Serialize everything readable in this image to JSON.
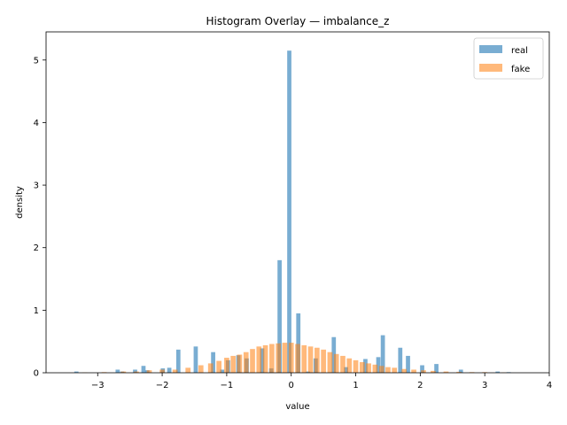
{
  "chart_data": {
    "type": "bar",
    "title": "Histogram Overlay — imbalance_z",
    "xlabel": "value",
    "ylabel": "density",
    "xlim": [
      -3.8,
      4.0
    ],
    "ylim": [
      0,
      5.45
    ],
    "x_ticks": [
      -3,
      -2,
      -1,
      0,
      1,
      2,
      3,
      4
    ],
    "y_ticks": [
      0,
      1,
      2,
      3,
      4,
      5
    ],
    "grid": false,
    "legend_position": "top-right",
    "series": [
      {
        "name": "real",
        "color": "#1f77b4",
        "opacity": 0.6,
        "bin_width": 0.065,
        "bins": [
          [
            -3.33,
            0.02
          ],
          [
            -2.69,
            0.05
          ],
          [
            -2.62,
            0.02
          ],
          [
            -2.42,
            0.05
          ],
          [
            -2.29,
            0.11
          ],
          [
            -2.23,
            0.04
          ],
          [
            -1.99,
            0.07
          ],
          [
            -1.89,
            0.08
          ],
          [
            -1.75,
            0.37
          ],
          [
            -1.48,
            0.42
          ],
          [
            -1.21,
            0.33
          ],
          [
            -1.07,
            0.05
          ],
          [
            -0.98,
            0.2
          ],
          [
            -0.82,
            0.28
          ],
          [
            -0.69,
            0.23
          ],
          [
            -0.45,
            0.39
          ],
          [
            -0.31,
            0.07
          ],
          [
            -0.18,
            1.8
          ],
          [
            -0.03,
            5.15
          ],
          [
            0.11,
            0.95
          ],
          [
            0.26,
            0.02
          ],
          [
            0.38,
            0.23
          ],
          [
            0.66,
            0.57
          ],
          [
            0.85,
            0.09
          ],
          [
            1.15,
            0.22
          ],
          [
            1.35,
            0.25
          ],
          [
            1.42,
            0.6
          ],
          [
            1.69,
            0.4
          ],
          [
            1.81,
            0.27
          ],
          [
            2.03,
            0.12
          ],
          [
            2.25,
            0.14
          ],
          [
            2.63,
            0.05
          ],
          [
            3.2,
            0.02
          ],
          [
            3.37,
            0.01
          ]
        ]
      },
      {
        "name": "fake",
        "color": "#ff7f0e",
        "opacity": 0.55,
        "bin_width": 0.078,
        "bins": [
          [
            -3.2,
            0.005
          ],
          [
            -2.9,
            0.01
          ],
          [
            -2.6,
            0.02
          ],
          [
            -2.4,
            0.02
          ],
          [
            -2.2,
            0.04
          ],
          [
            -2.0,
            0.05
          ],
          [
            -1.8,
            0.05
          ],
          [
            -1.6,
            0.08
          ],
          [
            -1.4,
            0.12
          ],
          [
            -1.25,
            0.15
          ],
          [
            -1.12,
            0.19
          ],
          [
            -1.0,
            0.24
          ],
          [
            -0.9,
            0.27
          ],
          [
            -0.8,
            0.29
          ],
          [
            -0.7,
            0.33
          ],
          [
            -0.6,
            0.38
          ],
          [
            -0.5,
            0.42
          ],
          [
            -0.4,
            0.44
          ],
          [
            -0.3,
            0.46
          ],
          [
            -0.2,
            0.47
          ],
          [
            -0.1,
            0.48
          ],
          [
            0.0,
            0.48
          ],
          [
            0.1,
            0.46
          ],
          [
            0.2,
            0.44
          ],
          [
            0.3,
            0.42
          ],
          [
            0.4,
            0.4
          ],
          [
            0.5,
            0.37
          ],
          [
            0.6,
            0.33
          ],
          [
            0.7,
            0.3
          ],
          [
            0.8,
            0.27
          ],
          [
            0.9,
            0.23
          ],
          [
            1.0,
            0.2
          ],
          [
            1.1,
            0.17
          ],
          [
            1.2,
            0.15
          ],
          [
            1.3,
            0.13
          ],
          [
            1.4,
            0.11
          ],
          [
            1.5,
            0.09
          ],
          [
            1.6,
            0.08
          ],
          [
            1.75,
            0.06
          ],
          [
            1.9,
            0.05
          ],
          [
            2.05,
            0.04
          ],
          [
            2.2,
            0.03
          ],
          [
            2.4,
            0.02
          ],
          [
            2.6,
            0.015
          ],
          [
            2.8,
            0.01
          ],
          [
            3.0,
            0.01
          ],
          [
            3.3,
            0.005
          ]
        ]
      }
    ]
  }
}
